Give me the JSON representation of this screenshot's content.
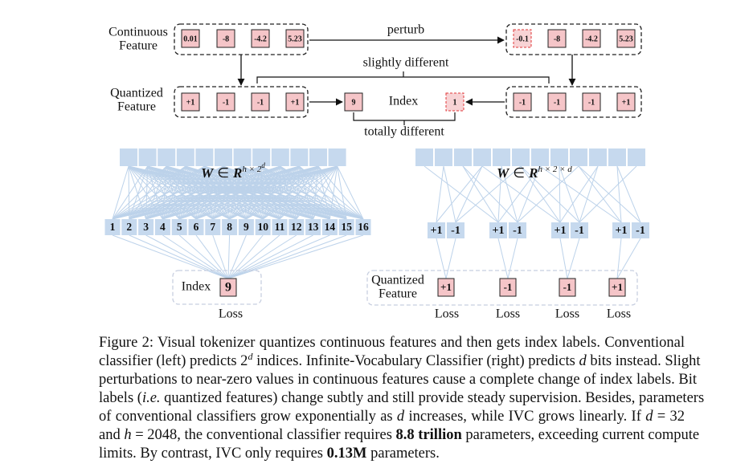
{
  "top": {
    "continuous_label": [
      "Continuous",
      "Feature"
    ],
    "quantized_label": [
      "Quantized",
      "Feature"
    ],
    "continuous_left": [
      "0.01",
      "-8",
      "-4.2",
      "5.23"
    ],
    "continuous_right": [
      "-0.1",
      "-8",
      "-4.2",
      "5.23"
    ],
    "perturb": "perturb",
    "slightly_different": "slightly different",
    "quantized_left": [
      "+1",
      "-1",
      "-1",
      "+1"
    ],
    "quantized_right": [
      "-1",
      "-1",
      "-1",
      "+1"
    ],
    "index_left": "9",
    "index_label": "Index",
    "index_right": "1",
    "totally_different": "totally different"
  },
  "left": {
    "weight": {
      "symbol": "W",
      "in": "∈",
      "space": "R",
      "sup": "h × 2",
      "supsup": "d"
    },
    "indices": [
      1,
      2,
      3,
      4,
      5,
      6,
      7,
      8,
      9,
      10,
      11,
      12,
      13,
      14,
      15,
      16
    ],
    "index_label": "Index",
    "index_value": "9",
    "loss": "Loss"
  },
  "right": {
    "weight": {
      "symbol": "W",
      "in": "∈",
      "space": "R",
      "sup": "h × 2 × d"
    },
    "bits": [
      [
        "+1",
        "-1"
      ],
      [
        "+1",
        "-1"
      ],
      [
        "+1",
        "-1"
      ],
      [
        "+1",
        "-1"
      ]
    ],
    "quantized_label": [
      "Quantized",
      "Feature"
    ],
    "quantized": [
      "+1",
      "-1",
      "-1",
      "+1"
    ],
    "loss": [
      "Loss",
      "Loss",
      "Loss",
      "Loss"
    ]
  },
  "caption": {
    "lines": [
      [
        "Figure 2: Visual tokenizer quantizes continuous features and then gets index labels. Conventional"
      ],
      [
        "classifier (left) predicts 2",
        "d",
        " indices. Infinite-Vocabulary Classifier (right) predicts ",
        "d",
        " bits instead. Slight"
      ],
      [
        "perturbations to near-zero values in continuous features cause a complete change of index labels. Bit"
      ],
      [
        "labels (",
        "i.e.",
        " quantized features) change subtly and still provide steady supervision. Besides, parameters"
      ],
      [
        "of conventional classifiers grow exponentially as ",
        "d",
        " increases, while IVC grows linearly. If ",
        "d",
        " = 32"
      ],
      [
        "and ",
        "h",
        " = 2048, the conventional classifier requires ",
        "8.8 trillion",
        " parameters, exceeding current compute"
      ],
      [
        "limits. By contrast, IVC only requires ",
        "0.13M",
        " parameters."
      ]
    ]
  }
}
